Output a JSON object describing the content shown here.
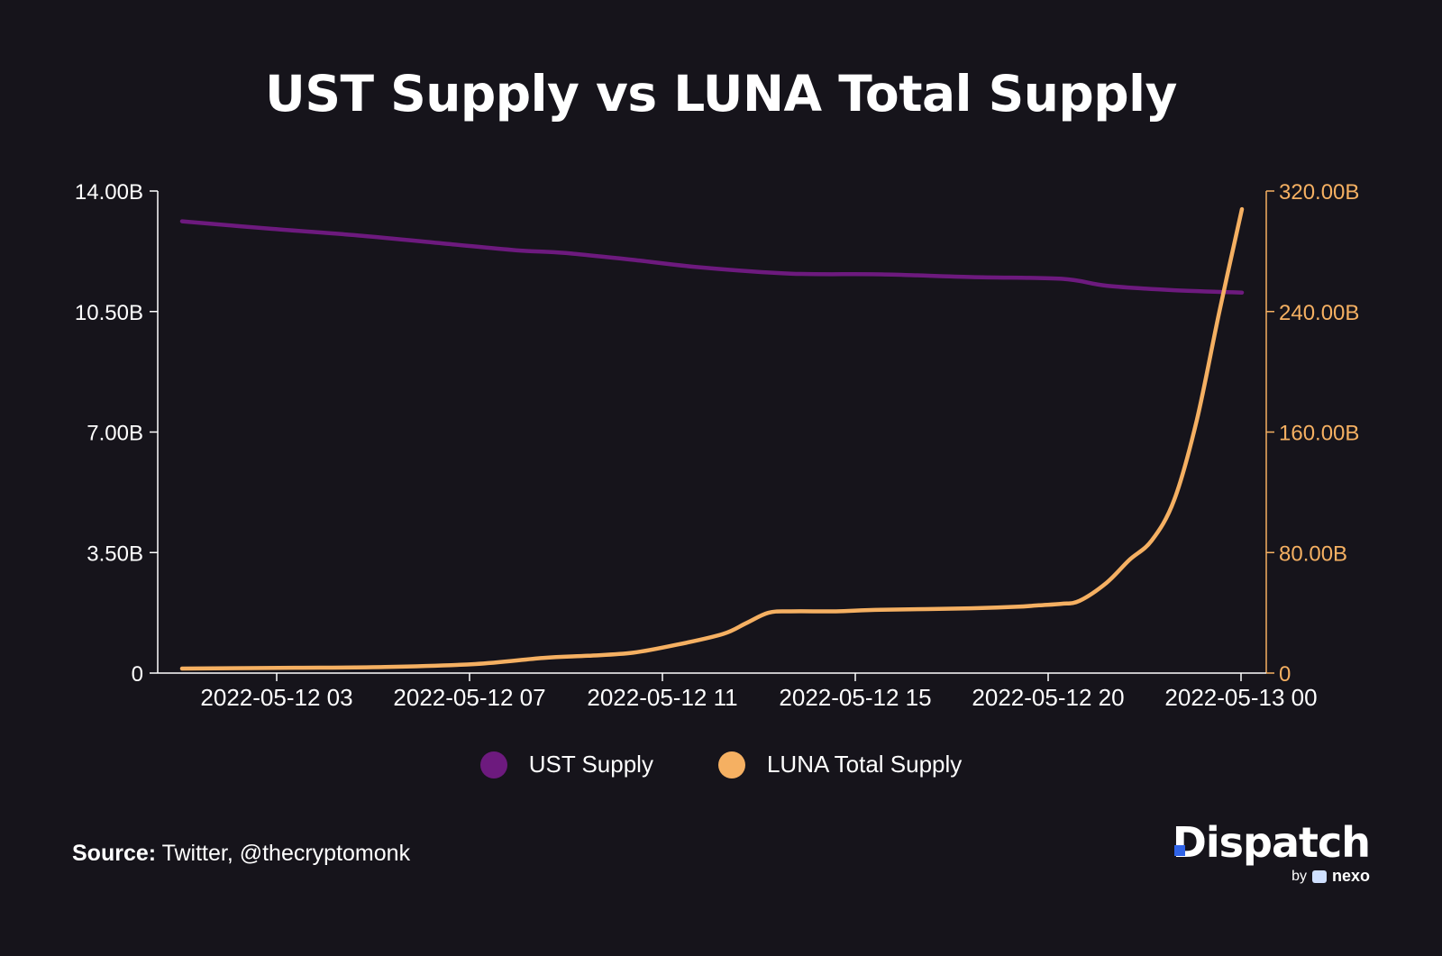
{
  "chart_data": {
    "type": "line",
    "title": "UST Supply vs LUNA Total Supply",
    "x_ticks": [
      "2022-05-12 03",
      "2022-05-12 07",
      "2022-05-12 11",
      "2022-05-12 15",
      "2022-05-12 20",
      "2022-05-13 00"
    ],
    "y_left": {
      "ticks": [
        "0",
        "3.50B",
        "7.00B",
        "10.50B",
        "14.00B"
      ],
      "ylim": [
        0,
        14.0
      ],
      "unit": "B"
    },
    "y_right": {
      "ticks": [
        "0",
        "80.00B",
        "160.00B",
        "240.00B",
        "320.00B"
      ],
      "ylim": [
        0,
        320.0
      ],
      "unit": "B"
    },
    "grid": false,
    "legend_placement": "bottom-center",
    "series": [
      {
        "name": "UST Supply",
        "axis": "left",
        "color": "#6d1a7e",
        "points": [
          [
            0.5,
            13.12
          ],
          [
            2.5,
            12.9
          ],
          [
            4.5,
            12.7
          ],
          [
            6.5,
            12.45
          ],
          [
            7.9,
            12.28
          ],
          [
            9,
            12.2
          ],
          [
            10.5,
            12.0
          ],
          [
            12,
            11.78
          ],
          [
            14.0,
            11.6
          ],
          [
            16.0,
            11.58
          ],
          [
            18.0,
            11.5
          ],
          [
            20.0,
            11.45
          ],
          [
            21.0,
            11.25
          ],
          [
            22.5,
            11.12
          ],
          [
            24.0,
            11.05
          ]
        ]
      },
      {
        "name": "LUNA Total Supply",
        "axis": "right",
        "color": "#f5b062",
        "points": [
          [
            0.5,
            3
          ],
          [
            3,
            3.5
          ],
          [
            5,
            4
          ],
          [
            7,
            6
          ],
          [
            8.5,
            10
          ],
          [
            9.5,
            11.5
          ],
          [
            10.5,
            13.5
          ],
          [
            11.5,
            19
          ],
          [
            12.5,
            26
          ],
          [
            13.0,
            33
          ],
          [
            13.5,
            40
          ],
          [
            14.0,
            41
          ],
          [
            15,
            41
          ],
          [
            16,
            42
          ],
          [
            18,
            43
          ],
          [
            19,
            44
          ],
          [
            19.5,
            45
          ],
          [
            20,
            46
          ],
          [
            20.4,
            48
          ],
          [
            21,
            60
          ],
          [
            21.5,
            75
          ],
          [
            22,
            88
          ],
          [
            22.5,
            115
          ],
          [
            23.0,
            168
          ],
          [
            23.5,
            240
          ],
          [
            24.0,
            308
          ]
        ]
      }
    ]
  },
  "legend": [
    {
      "label": "UST Supply",
      "color": "#6d1a7e"
    },
    {
      "label": "LUNA Total Supply",
      "color": "#f5b062"
    }
  ],
  "source": {
    "label": "Source:",
    "text": " Twitter, @thecryptomonk"
  },
  "brand": {
    "name": "Dispatch",
    "by": "by",
    "partner": "nexo"
  }
}
